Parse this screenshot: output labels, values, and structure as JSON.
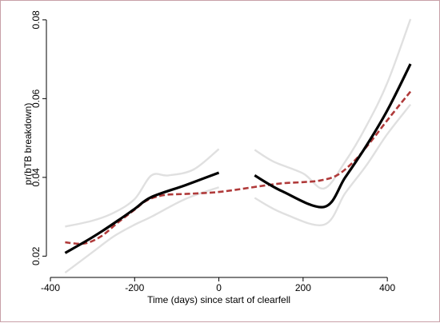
{
  "chart_data": {
    "type": "line",
    "title": "",
    "xlabel": "Time (days) since start of clearfell",
    "ylabel": "pr(bTB breakdown)",
    "xlim": [
      -400,
      470
    ],
    "ylim": [
      0.015,
      0.082
    ],
    "x_ticks": [
      -400,
      -200,
      0,
      200,
      400
    ],
    "x_tick_labels": [
      "-400",
      "-200",
      "0",
      "200",
      "400"
    ],
    "y_ticks": [
      0.02,
      0.04,
      0.06,
      0.08
    ],
    "y_tick_labels": [
      "0.02",
      "0.04",
      "0.06",
      "0.08"
    ],
    "grid": false,
    "legend": "none",
    "colors": {
      "fit": "#000000",
      "ci": "#e0e0e0",
      "smooth": "#b03a3a",
      "frame": "#c8a0a8"
    },
    "series": [
      {
        "style": "solid-black",
        "segments": [
          [
            [
              -365,
              0.0208
            ],
            [
              -300,
              0.0248
            ],
            [
              -240,
              0.029
            ],
            [
              -200,
              0.032
            ],
            [
              -160,
              0.035
            ],
            [
              -80,
              0.038
            ],
            [
              0,
              0.0412
            ]
          ],
          [
            [
              85,
              0.0405
            ],
            [
              150,
              0.0365
            ],
            [
              250,
              0.0325
            ],
            [
              300,
              0.04
            ],
            [
              350,
              0.048
            ],
            [
              400,
              0.057
            ],
            [
              455,
              0.0688
            ]
          ]
        ]
      },
      {
        "style": "ci-upper-gray",
        "segments": [
          [
            [
              -365,
              0.0275
            ],
            [
              -300,
              0.029
            ],
            [
              -250,
              0.031
            ],
            [
              -200,
              0.0345
            ],
            [
              -160,
              0.0405
            ],
            [
              -120,
              0.0405
            ],
            [
              -60,
              0.042
            ],
            [
              0,
              0.0472
            ]
          ],
          [
            [
              85,
              0.047
            ],
            [
              130,
              0.044
            ],
            [
              200,
              0.041
            ],
            [
              250,
              0.0372
            ],
            [
              300,
              0.044
            ],
            [
              350,
              0.053
            ],
            [
              400,
              0.064
            ],
            [
              455,
              0.0802
            ]
          ]
        ]
      },
      {
        "style": "ci-lower-gray",
        "segments": [
          [
            [
              -365,
              0.0158
            ],
            [
              -300,
              0.021
            ],
            [
              -250,
              0.025
            ],
            [
              -200,
              0.028
            ],
            [
              -160,
              0.03
            ],
            [
              -80,
              0.0345
            ],
            [
              0,
              0.0375
            ]
          ],
          [
            [
              85,
              0.0348
            ],
            [
              150,
              0.031
            ],
            [
              250,
              0.028
            ],
            [
              300,
              0.036
            ],
            [
              350,
              0.043
            ],
            [
              400,
              0.051
            ],
            [
              455,
              0.0585
            ]
          ]
        ]
      },
      {
        "style": "dashed-red",
        "segments": [
          [
            [
              -365,
              0.0235
            ],
            [
              -320,
              0.0232
            ],
            [
              -280,
              0.025
            ],
            [
              -240,
              0.0285
            ],
            [
              -200,
              0.0318
            ],
            [
              -170,
              0.0342
            ],
            [
              -130,
              0.0355
            ],
            [
              -80,
              0.0358
            ],
            [
              -40,
              0.036
            ],
            [
              0,
              0.0363
            ],
            [
              50,
              0.037
            ],
            [
              100,
              0.0378
            ],
            [
              150,
              0.0385
            ],
            [
              200,
              0.0388
            ],
            [
              240,
              0.0392
            ],
            [
              280,
              0.0405
            ],
            [
              320,
              0.044
            ],
            [
              360,
              0.049
            ],
            [
              400,
              0.0545
            ],
            [
              430,
              0.0585
            ],
            [
              455,
              0.0618
            ]
          ]
        ]
      }
    ]
  }
}
